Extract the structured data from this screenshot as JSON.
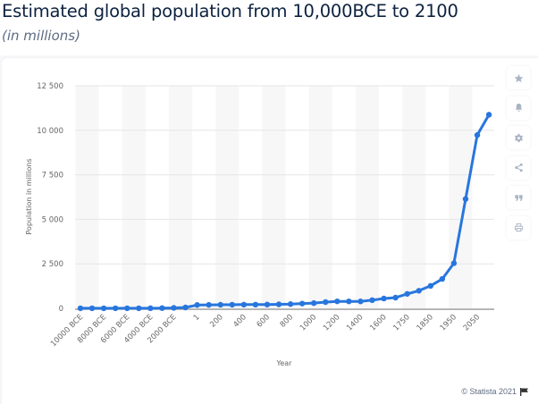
{
  "header": {
    "title": "Estimated global population from 10,000BCE to 2100",
    "subtitle": "(in millions)"
  },
  "toolbar": {
    "buttons": [
      {
        "name": "favorite",
        "icon": "star-icon"
      },
      {
        "name": "notification",
        "icon": "bell-icon"
      },
      {
        "name": "settings",
        "icon": "gear-icon"
      },
      {
        "name": "share",
        "icon": "share-icon"
      },
      {
        "name": "cite",
        "icon": "quote-icon"
      },
      {
        "name": "print",
        "icon": "print-icon"
      }
    ],
    "icon_color": "#a9b4c4"
  },
  "footer": {
    "copyright": "© Statista 2021",
    "flag_icon": "flag-icon"
  },
  "chart_data": {
    "type": "line",
    "title": "Estimated global population from 10,000BCE to 2100",
    "subtitle": "(in millions)",
    "xlabel": "Year",
    "ylabel": "Population in millions",
    "ylim": [
      0,
      12500
    ],
    "yticks": [
      0,
      2500,
      5000,
      7500,
      10000,
      12500
    ],
    "ytick_labels": [
      "0",
      "2 500",
      "5 000",
      "7 500",
      "10 000",
      "12 500"
    ],
    "grid": true,
    "legend": "none",
    "line_color": "#2876dd",
    "categories": [
      "10000 BCE",
      "9000 BCE",
      "8000 BCE",
      "7000 BCE",
      "6000 BCE",
      "5000 BCE",
      "4000 BCE",
      "3000 BCE",
      "2000 BCE",
      "1000 BCE",
      "1",
      "100",
      "200",
      "300",
      "400",
      "500",
      "600",
      "700",
      "800",
      "900",
      "1000",
      "1100",
      "1200",
      "1300",
      "1400",
      "1500",
      "1600",
      "1700",
      "1750",
      "1800",
      "1850",
      "1900",
      "1950",
      "2000",
      "2050",
      "2100"
    ],
    "xtick_labels_shown": [
      "10000 BCE",
      "8000 BCE",
      "6000 BCE",
      "4000 BCE",
      "2000 BCE",
      "1",
      "200",
      "400",
      "600",
      "800",
      "1000",
      "1200",
      "1400",
      "1600",
      "1750",
      "1850",
      "1950",
      "2050"
    ],
    "series": [
      {
        "name": "Population",
        "values": [
          4,
          5,
          5,
          5,
          5,
          5,
          7,
          14,
          27,
          50,
          188,
          195,
          202,
          205,
          209,
          210,
          213,
          226,
          240,
          269,
          295,
          353,
          393,
          392,
          390,
          461,
          554,
          603,
          814,
          990,
          1263,
          1654,
          2536,
          6145,
          9735,
          10875
        ]
      }
    ]
  }
}
